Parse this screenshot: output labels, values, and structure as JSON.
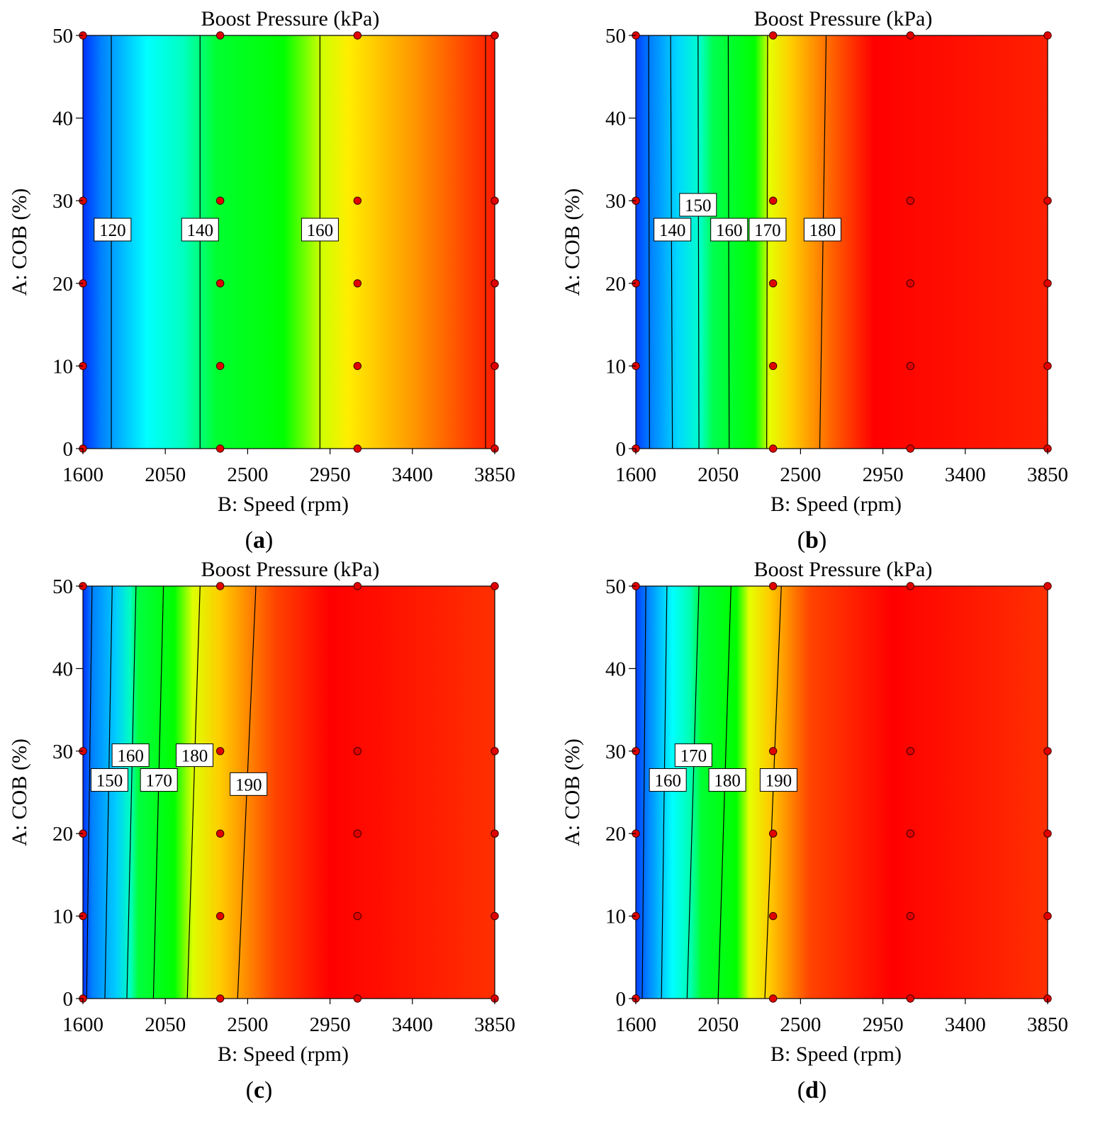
{
  "figure": {
    "type": "contour-panels",
    "colors": {
      "colormap": [
        "#0000ff",
        "#00ffff",
        "#00ff00",
        "#ffff00",
        "#ff0000"
      ],
      "point_fill": "#e00000",
      "line": "#000000",
      "label_box": "#ffffff"
    }
  },
  "chart_data": [
    {
      "id": "a",
      "type": "heatmap",
      "panel_label_prefix": "(",
      "panel_label_letter": "a",
      "panel_label_suffix": ")",
      "title": "Boost Pressure (kPa)",
      "xlabel": "B: Speed  (rpm)",
      "ylabel": "A: COB (%)",
      "xlim": [
        1600,
        3850
      ],
      "ylim": [
        0,
        50
      ],
      "xticks": [
        "1600",
        "2050",
        "2500",
        "2950",
        "3400",
        "3850"
      ],
      "yticks": [
        "0",
        "10",
        "20",
        "30",
        "40",
        "50"
      ],
      "color_stops": [
        {
          "speed": 1600,
          "color": "#0030ff"
        },
        {
          "speed": 1700,
          "color": "#0080ff"
        },
        {
          "speed": 1950,
          "color": "#00ffff"
        },
        {
          "speed": 2150,
          "color": "#00ffc0"
        },
        {
          "speed": 2330,
          "color": "#00ff30"
        },
        {
          "speed": 2700,
          "color": "#00ff00"
        },
        {
          "speed": 2900,
          "color": "#ccff00"
        },
        {
          "speed": 3050,
          "color": "#ffee00"
        },
        {
          "speed": 3400,
          "color": "#ff9900"
        },
        {
          "speed": 3850,
          "color": "#ff1a00"
        }
      ],
      "contours": [
        {
          "label": "120",
          "speed_at_cob0": 1755,
          "speed_at_cob50": 1755,
          "label_speed": 1762,
          "label_cob": 26.5
        },
        {
          "label": "140",
          "speed_at_cob0": 2240,
          "speed_at_cob50": 2240,
          "label_speed": 2240,
          "label_cob": 26.5
        },
        {
          "label": "160",
          "speed_at_cob0": 2895,
          "speed_at_cob50": 2895,
          "label_speed": 2895,
          "label_cob": 26.5
        },
        {
          "label": "",
          "speed_at_cob0": 3800,
          "speed_at_cob50": 3800
        }
      ],
      "design_points": {
        "speeds": [
          1600,
          2350,
          3100,
          3850
        ],
        "cob": [
          0,
          10,
          20,
          30,
          50
        ]
      }
    },
    {
      "id": "b",
      "type": "heatmap",
      "panel_label_prefix": "(",
      "panel_label_letter": "b",
      "panel_label_suffix": ")",
      "title": "Boost Pressure  (kPa)",
      "xlabel": "B: Speed  (rpm)",
      "ylabel": "A: COB (%)",
      "xlim": [
        1600,
        3850
      ],
      "ylim": [
        0,
        50
      ],
      "xticks": [
        "1600",
        "2050",
        "2500",
        "2950",
        "3400",
        "3850"
      ],
      "yticks": [
        "0",
        "10",
        "20",
        "30",
        "40",
        "50"
      ],
      "color_stops": [
        {
          "speed": 1600,
          "color": "#0040ff"
        },
        {
          "speed": 1680,
          "color": "#0080ff"
        },
        {
          "speed": 1830,
          "color": "#00d8ff"
        },
        {
          "speed": 1950,
          "color": "#00ffcc"
        },
        {
          "speed": 2020,
          "color": "#00ff50"
        },
        {
          "speed": 2250,
          "color": "#00ff00"
        },
        {
          "speed": 2330,
          "color": "#e5ff00"
        },
        {
          "speed": 2450,
          "color": "#ffcc00"
        },
        {
          "speed": 2700,
          "color": "#ff5500"
        },
        {
          "speed": 2900,
          "color": "#ff0000"
        },
        {
          "speed": 3850,
          "color": "#ff2000"
        }
      ],
      "contours": [
        {
          "label": "",
          "speed_at_cob0": 1675,
          "speed_at_cob50": 1670
        },
        {
          "label": "140",
          "speed_at_cob0": 1800,
          "speed_at_cob50": 1790,
          "label_speed": 1800,
          "label_cob": 26.5
        },
        {
          "label": "150",
          "speed_at_cob0": 1945,
          "speed_at_cob50": 1940,
          "label_speed": 1940,
          "label_cob": 29.5
        },
        {
          "label": "160",
          "speed_at_cob0": 2110,
          "speed_at_cob50": 2105,
          "label_speed": 2110,
          "label_cob": 26.5
        },
        {
          "label": "170",
          "speed_at_cob0": 2315,
          "speed_at_cob50": 2320,
          "label_speed": 2320,
          "label_cob": 26.5
        },
        {
          "label": "180",
          "speed_at_cob0": 2605,
          "speed_at_cob50": 2640,
          "label_speed": 2620,
          "label_cob": 26.5
        }
      ],
      "design_points": {
        "speeds": [
          1600,
          2350,
          3100,
          3850
        ],
        "cob": [
          0,
          10,
          20,
          30,
          50
        ]
      }
    },
    {
      "id": "c",
      "type": "heatmap",
      "panel_label_prefix": "(",
      "panel_label_letter": "c",
      "panel_label_suffix": ")",
      "title": "Boost Pressure  (kPa)",
      "xlabel": "B: Speed  (rpm)",
      "ylabel": "A: COB (%)",
      "xlim": [
        1600,
        3850
      ],
      "ylim": [
        0,
        50
      ],
      "xticks": [
        "1600",
        "2050",
        "2500",
        "2950",
        "3400",
        "3850"
      ],
      "yticks": [
        "0",
        "10",
        "20",
        "30",
        "40",
        "50"
      ],
      "color_stops": [
        {
          "speed": 1600,
          "color": "#0030ff"
        },
        {
          "speed": 1650,
          "color": "#0080ff"
        },
        {
          "speed": 1780,
          "color": "#00ccff"
        },
        {
          "speed": 1860,
          "color": "#00ffc0"
        },
        {
          "speed": 1900,
          "color": "#00ff40"
        },
        {
          "speed": 2100,
          "color": "#00ff00"
        },
        {
          "speed": 2200,
          "color": "#ddff00"
        },
        {
          "speed": 2350,
          "color": "#ffcc00"
        },
        {
          "speed": 2650,
          "color": "#ff4400"
        },
        {
          "speed": 2950,
          "color": "#ff0000"
        },
        {
          "speed": 3850,
          "color": "#ff3000"
        }
      ],
      "contours": [
        {
          "label": "",
          "speed_at_cob0": 1620,
          "speed_at_cob50": 1650
        },
        {
          "label": "150",
          "speed_at_cob0": 1720,
          "speed_at_cob50": 1760,
          "label_speed": 1745,
          "label_cob": 26.5
        },
        {
          "label": "160",
          "speed_at_cob0": 1840,
          "speed_at_cob50": 1890,
          "label_speed": 1860,
          "label_cob": 29.5
        },
        {
          "label": "170",
          "speed_at_cob0": 1985,
          "speed_at_cob50": 2040,
          "label_speed": 2015,
          "label_cob": 26.5
        },
        {
          "label": "180",
          "speed_at_cob0": 2170,
          "speed_at_cob50": 2240,
          "label_speed": 2210,
          "label_cob": 29.5
        },
        {
          "label": "190",
          "speed_at_cob0": 2445,
          "speed_at_cob50": 2545,
          "label_speed": 2505,
          "label_cob": 26.0
        }
      ],
      "design_points": {
        "speeds": [
          1600,
          2350,
          3100,
          3850
        ],
        "cob": [
          0,
          10,
          20,
          30,
          50
        ]
      }
    },
    {
      "id": "d",
      "type": "heatmap",
      "panel_label_prefix": "(",
      "panel_label_letter": "d",
      "panel_label_suffix": ")",
      "title": "Boost Pressure  (kPa)",
      "xlabel": "B: Speed  (rpm)",
      "ylabel": "A: COB (%)",
      "xlim": [
        1600,
        3850
      ],
      "ylim": [
        0,
        50
      ],
      "xticks": [
        "1600",
        "2050",
        "2500",
        "2950",
        "3400",
        "3850"
      ],
      "yticks": [
        "0",
        "10",
        "20",
        "30",
        "40",
        "50"
      ],
      "color_stops": [
        {
          "speed": 1600,
          "color": "#0040ff"
        },
        {
          "speed": 1680,
          "color": "#0090ff"
        },
        {
          "speed": 1800,
          "color": "#00ffff"
        },
        {
          "speed": 1900,
          "color": "#00ffb0"
        },
        {
          "speed": 1960,
          "color": "#00ff30"
        },
        {
          "speed": 2150,
          "color": "#00ff00"
        },
        {
          "speed": 2220,
          "color": "#e5ff00"
        },
        {
          "speed": 2330,
          "color": "#ffcc00"
        },
        {
          "speed": 2550,
          "color": "#ff4400"
        },
        {
          "speed": 3000,
          "color": "#ff0000"
        },
        {
          "speed": 3850,
          "color": "#ff3000"
        }
      ],
      "contours": [
        {
          "label": "",
          "speed_at_cob0": 1635,
          "speed_at_cob50": 1655
        },
        {
          "label": "160",
          "speed_at_cob0": 1740,
          "speed_at_cob50": 1770,
          "label_speed": 1775,
          "label_cob": 26.5
        },
        {
          "label": "170",
          "speed_at_cob0": 1880,
          "speed_at_cob50": 1945,
          "label_speed": 1915,
          "label_cob": 29.5
        },
        {
          "label": "180",
          "speed_at_cob0": 2050,
          "speed_at_cob50": 2120,
          "label_speed": 2100,
          "label_cob": 26.5
        },
        {
          "label": "190",
          "speed_at_cob0": 2305,
          "speed_at_cob50": 2395,
          "label_speed": 2380,
          "label_cob": 26.5
        }
      ],
      "design_points": {
        "speeds": [
          1600,
          2350,
          3100,
          3850
        ],
        "cob": [
          0,
          10,
          20,
          30,
          50
        ]
      }
    }
  ]
}
